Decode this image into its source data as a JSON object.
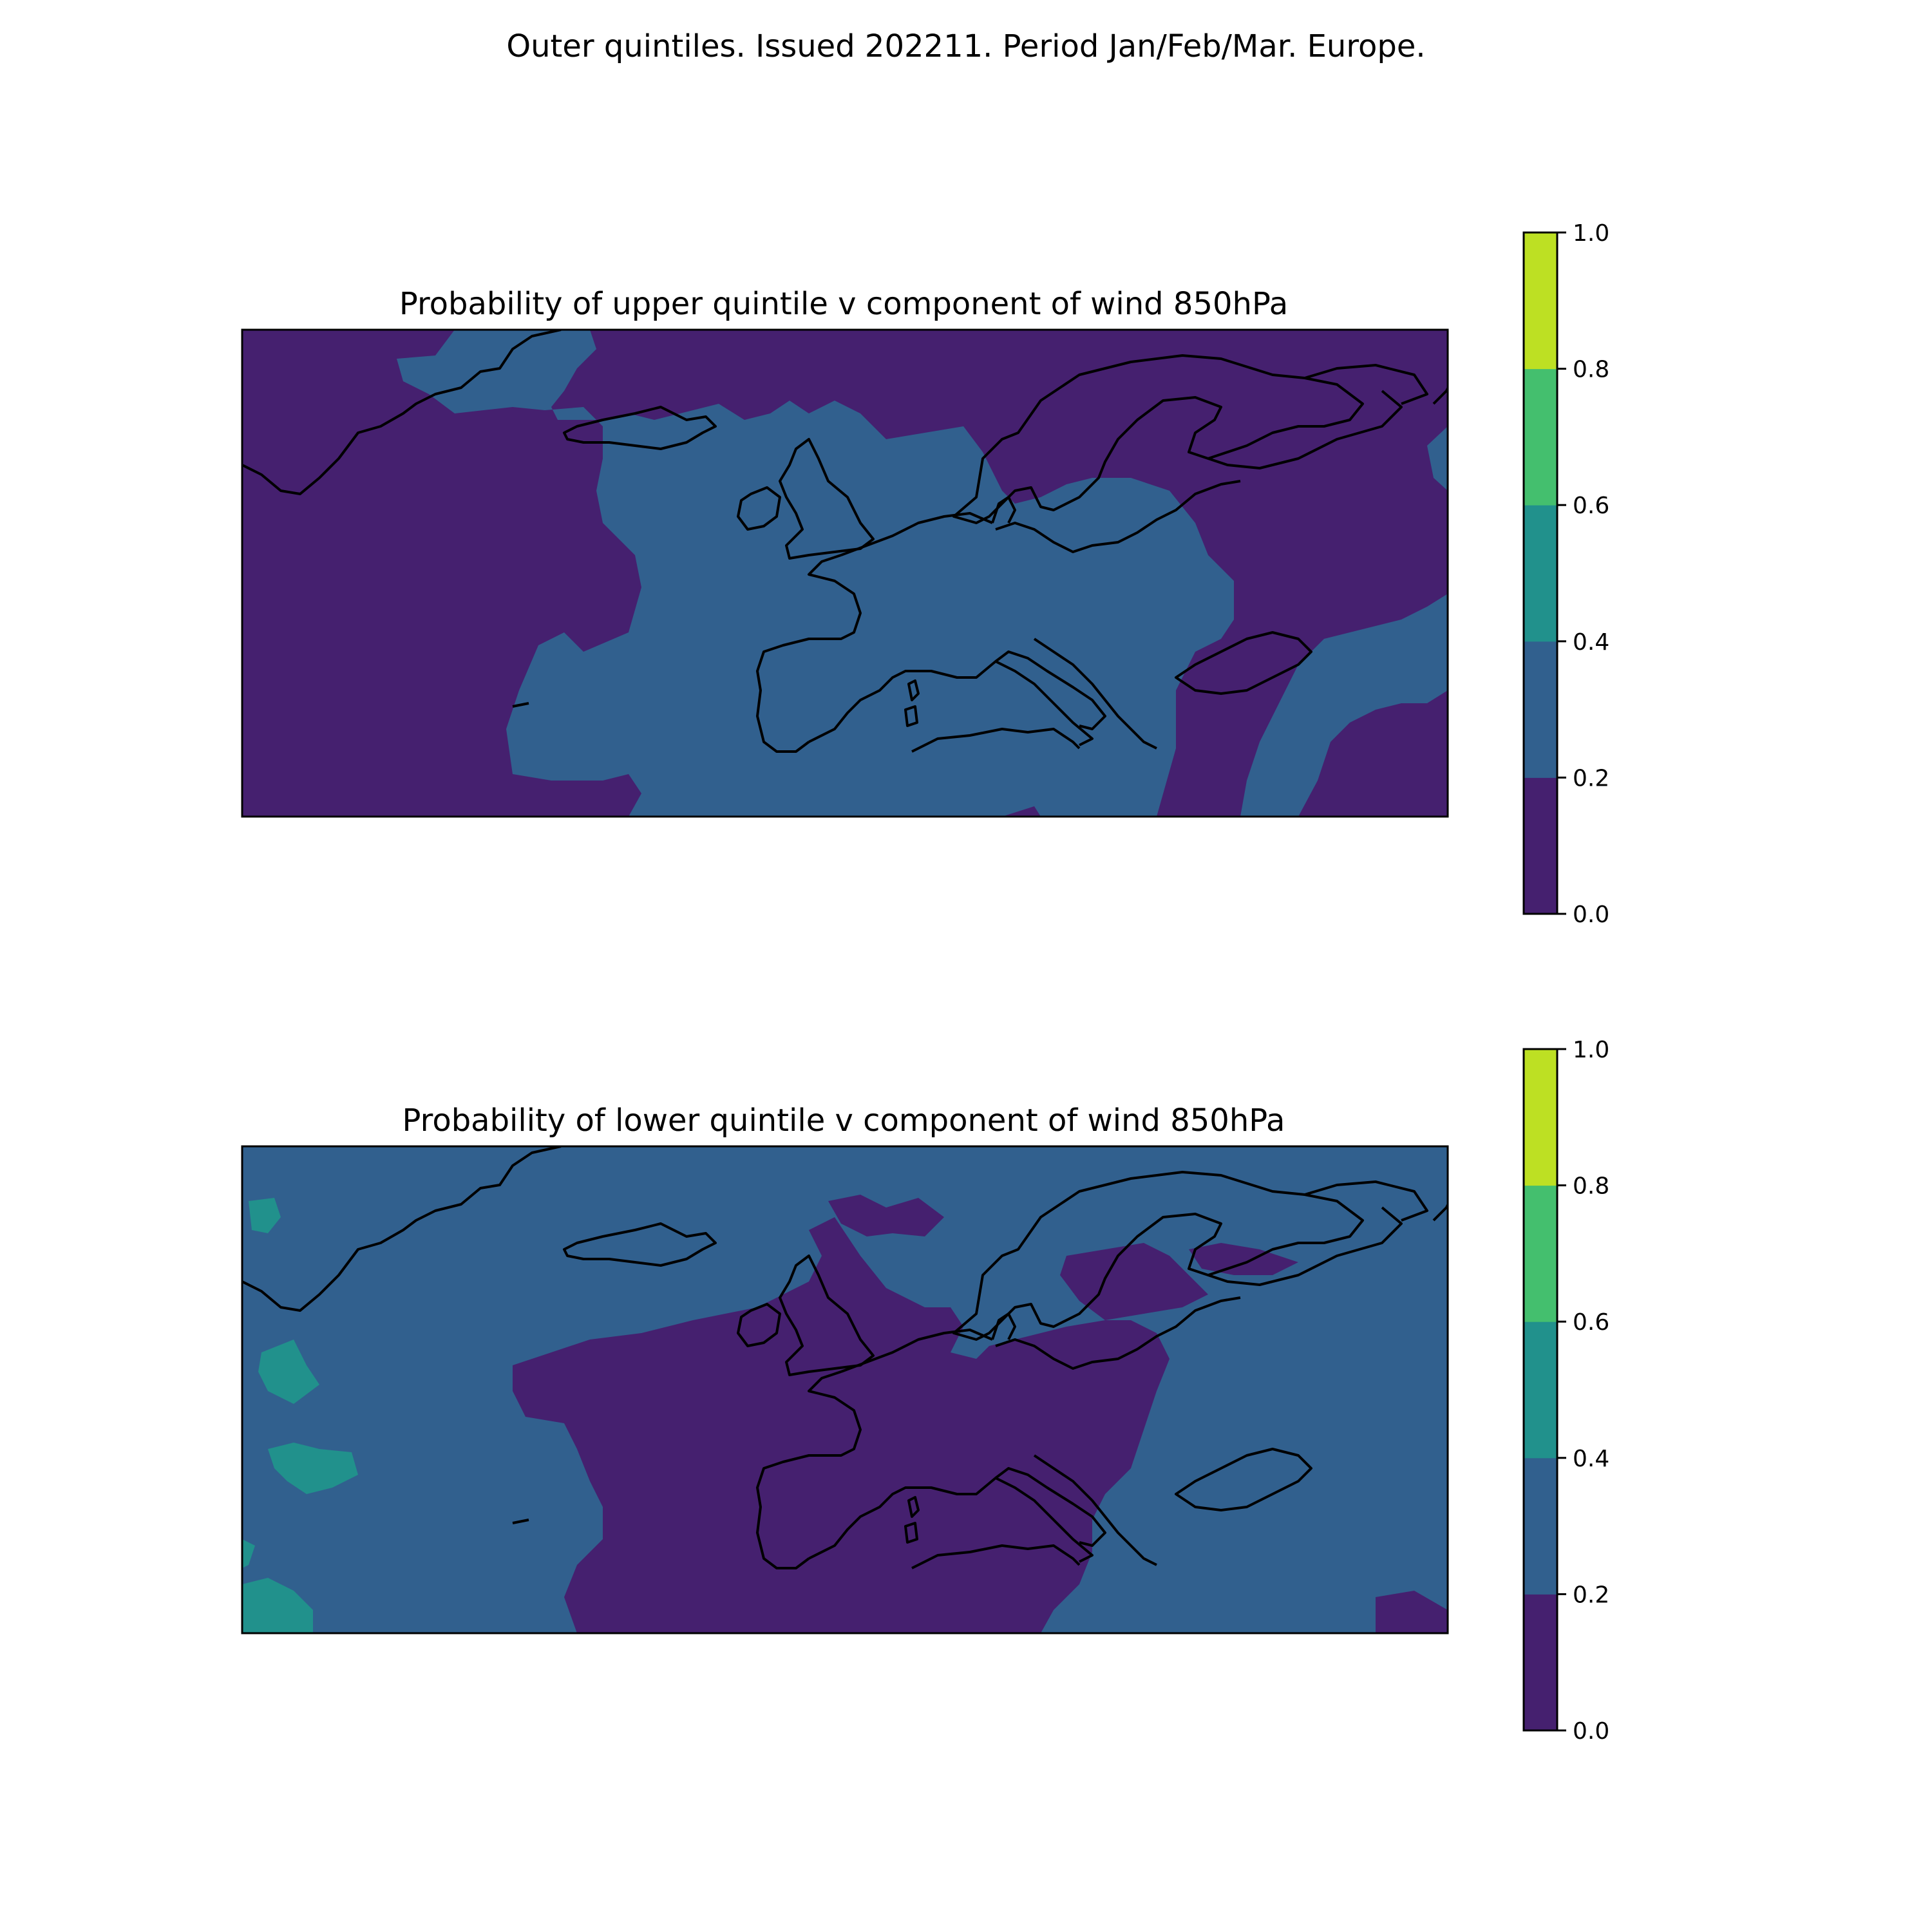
{
  "figure": {
    "suptitle": "Outer quintiles. Issued 202211. Period Jan/Feb/Mar. Europe."
  },
  "colors": {
    "levels": [
      "#45206f",
      "#31608e",
      "#21918c",
      "#44bf6e",
      "#bde023"
    ],
    "coast": "#000000"
  },
  "panels": [
    {
      "title": "Probability of upper quintile v component of wind 850hPa",
      "background_level": 0,
      "colorbar": {
        "ticks": [
          "0.0",
          "0.2",
          "0.4",
          "0.6",
          "0.8",
          "1.0"
        ],
        "boundaries": [
          0.0,
          0.2,
          0.4,
          0.6,
          0.8,
          1.0
        ]
      }
    },
    {
      "title": "Probability of lower quintile v component of wind 850hPa",
      "background_level": 1,
      "colorbar": {
        "ticks": [
          "0.0",
          "0.2",
          "0.4",
          "0.6",
          "0.8",
          "1.0"
        ],
        "boundaries": [
          0.0,
          0.2,
          0.4,
          0.6,
          0.8,
          1.0
        ]
      }
    }
  ]
}
